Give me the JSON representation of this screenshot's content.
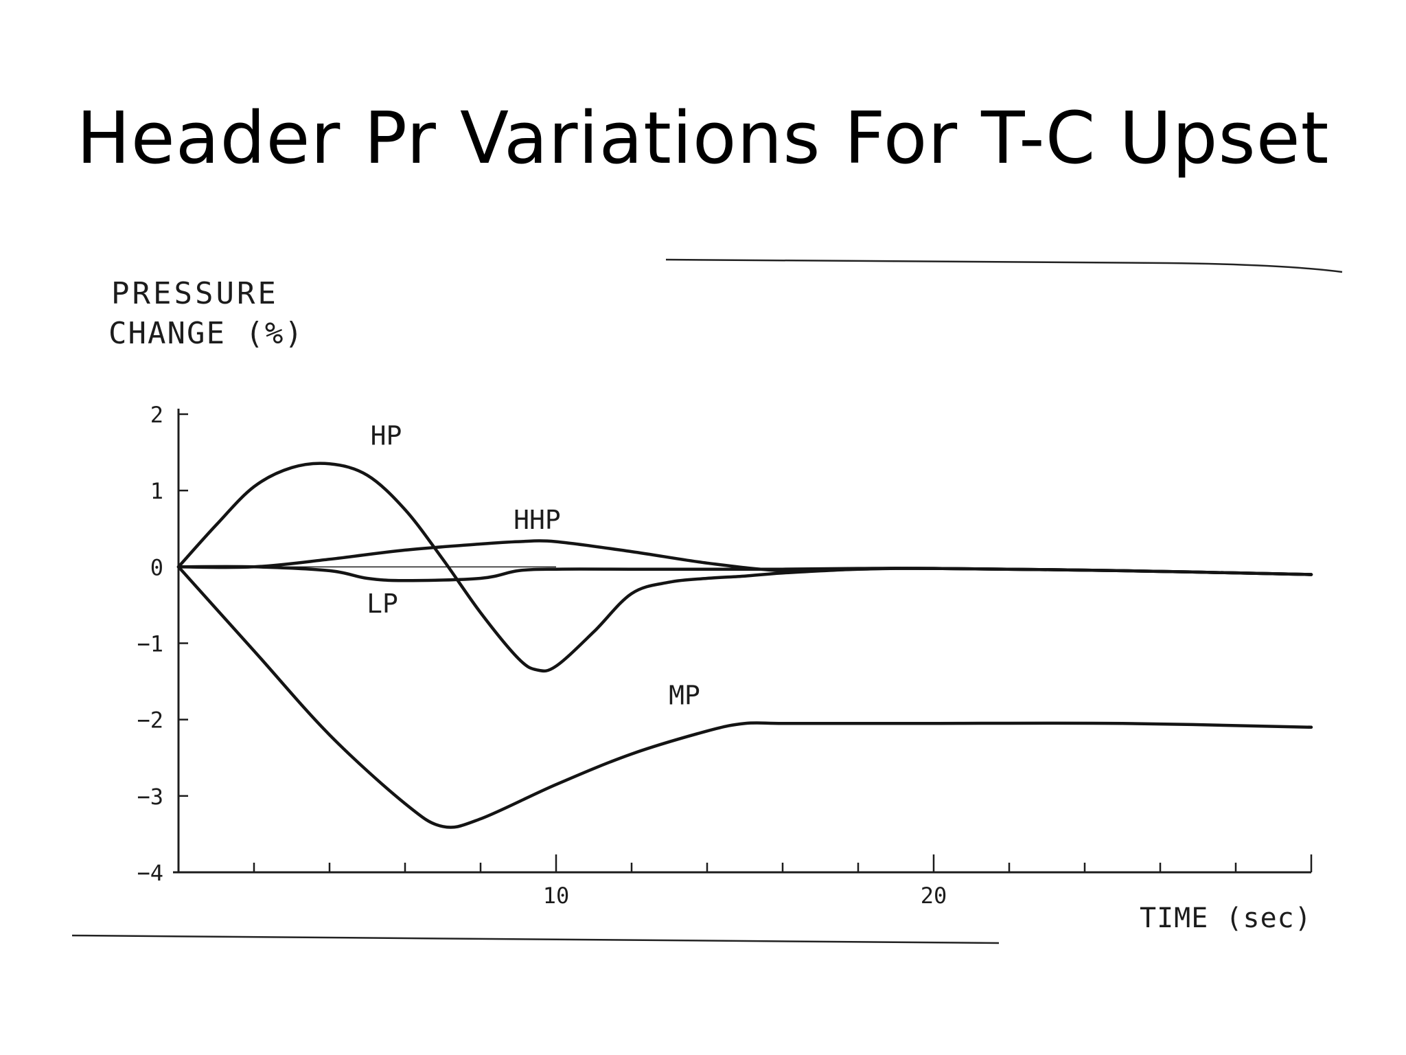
{
  "slide": {
    "title": "Header Pr Variations For T-C Upset"
  },
  "chart_data": {
    "type": "line",
    "ylabel_line1": "PRESSURE",
    "ylabel_line2": "CHANGE (%)",
    "xlabel": "TIME (sec)",
    "xlim": [
      0,
      30
    ],
    "ylim": [
      -4,
      2
    ],
    "y_ticks": [
      2,
      1,
      0,
      -1,
      -2,
      -3,
      -4
    ],
    "y_tick_labels": [
      "2",
      "1",
      "0",
      "−1",
      "−2",
      "−3",
      "−4"
    ],
    "x_ticks": [
      2,
      4,
      6,
      8,
      10,
      12,
      14,
      16,
      18,
      20,
      22,
      24,
      26,
      28,
      30
    ],
    "x_tick_labels": [
      {
        "x": 10,
        "label": "10"
      },
      {
        "x": 20,
        "label": "20"
      }
    ],
    "grid": false,
    "legend": "none (series labelled directly on the curves)",
    "series": [
      {
        "name": "HP",
        "x": [
          0,
          1,
          2,
          3,
          4,
          5,
          6,
          7,
          8,
          9,
          9.5,
          10,
          11,
          12,
          13,
          14,
          15,
          16,
          18,
          20,
          25,
          30
        ],
        "y": [
          0,
          0.55,
          1.05,
          1.3,
          1.35,
          1.2,
          0.75,
          0.1,
          -0.6,
          -1.2,
          -1.35,
          -1.3,
          -0.85,
          -0.35,
          -0.2,
          -0.15,
          -0.12,
          -0.08,
          -0.03,
          -0.02,
          -0.05,
          -0.1
        ]
      },
      {
        "name": "HHP",
        "x": [
          0,
          2,
          4,
          6,
          8,
          9,
          10,
          12,
          14,
          16,
          18,
          20,
          25,
          30
        ],
        "y": [
          0,
          0,
          0.1,
          0.22,
          0.3,
          0.33,
          0.33,
          0.2,
          0.05,
          -0.05,
          -0.03,
          -0.02,
          -0.05,
          -0.1
        ]
      },
      {
        "name": "LP",
        "x": [
          0,
          2,
          4,
          5,
          6,
          8,
          9,
          10,
          12,
          14,
          16,
          18,
          20,
          25,
          30
        ],
        "y": [
          0,
          0,
          -0.05,
          -0.15,
          -0.18,
          -0.15,
          -0.05,
          -0.03,
          -0.03,
          -0.03,
          -0.03,
          -0.02,
          -0.02,
          -0.05,
          -0.1
        ]
      },
      {
        "name": "MP",
        "x": [
          0,
          2,
          4,
          6,
          7,
          8,
          10,
          12,
          14,
          15,
          16,
          18,
          20,
          25,
          30
        ],
        "y": [
          0,
          -1.1,
          -2.2,
          -3.1,
          -3.4,
          -3.3,
          -2.85,
          -2.45,
          -2.15,
          -2.05,
          -2.05,
          -2.05,
          -2.05,
          -2.05,
          -2.1
        ]
      }
    ]
  }
}
